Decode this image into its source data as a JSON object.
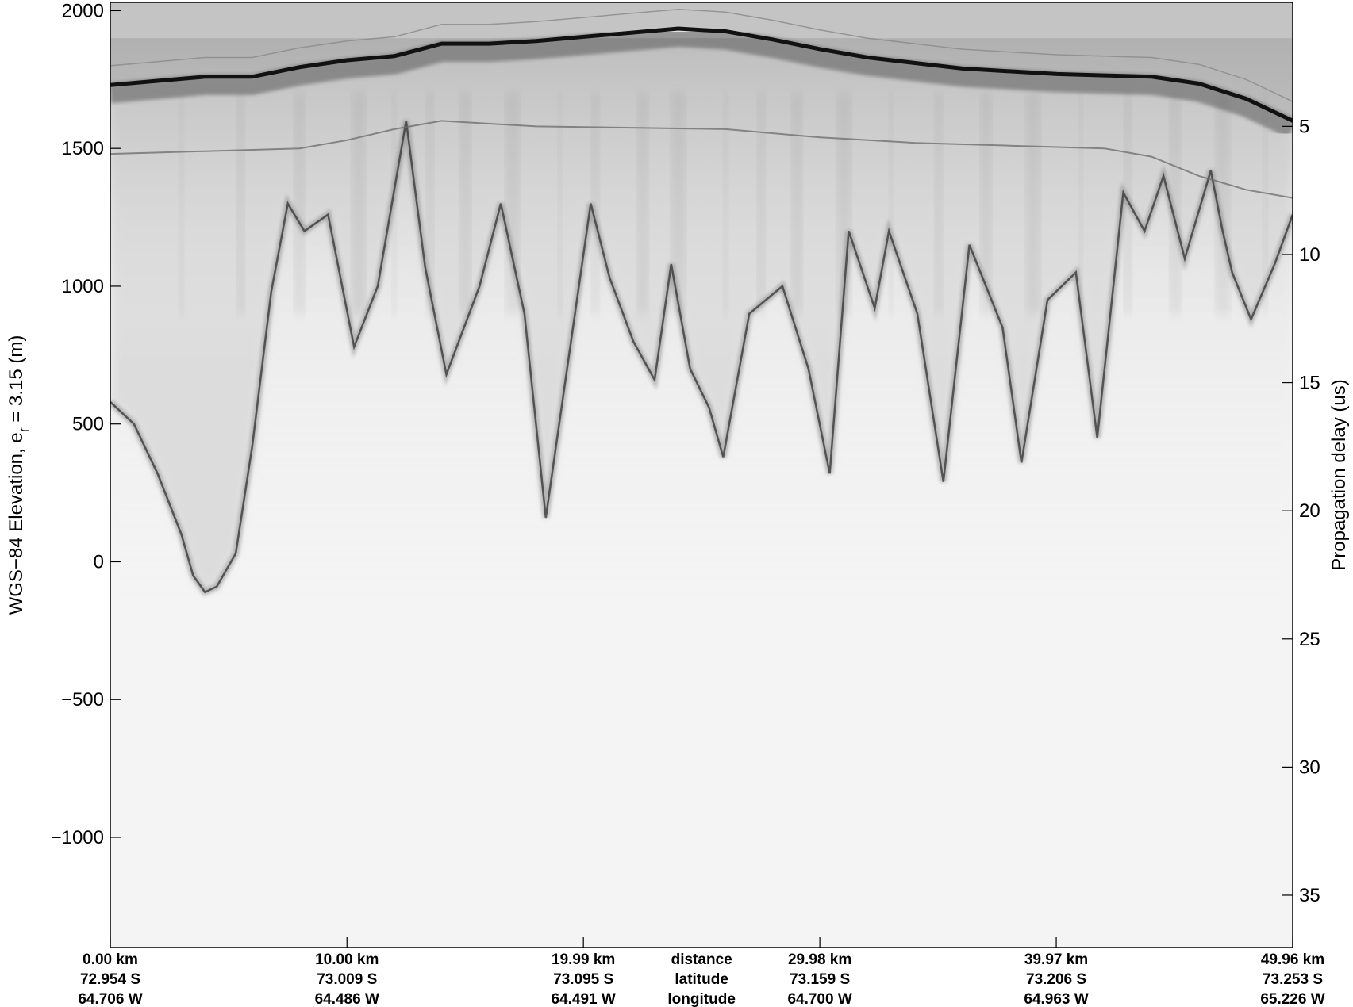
{
  "chart_data": {
    "type": "heatmap",
    "title": "",
    "colormap": "grayscale (dark = strong return)",
    "grid": false,
    "ylabel_left": "WGS−84 Elevation, e",
    "ylabel_left_subscript": "r",
    "ylabel_left_suffix": " = 3.15 (m)",
    "ylabel_right": "Propagation delay (us)",
    "ylim_left": [
      -1400,
      2030
    ],
    "yticks_left": [
      2000,
      1500,
      1000,
      500,
      0,
      -500,
      -1000
    ],
    "ytick_labels_left": [
      "2000",
      "1500",
      "1000",
      "500",
      "0",
      "−500",
      "−1000"
    ],
    "yticks_right": [
      5,
      10,
      15,
      20,
      25,
      30,
      35
    ],
    "ytick_labels_right": [
      "5",
      "10",
      "15",
      "20",
      "25",
      "30",
      "35"
    ],
    "xlim_km": [
      0,
      49.96
    ],
    "xticks_km": [
      0.0,
      10.0,
      19.99,
      29.98,
      39.97,
      49.96
    ],
    "xtick_rows": {
      "distance": [
        "0.00 km",
        "10.00 km",
        "19.99 km",
        "29.98 km",
        "39.97 km",
        "49.96 km"
      ],
      "latitude": [
        "72.954 S",
        "73.009 S",
        "73.095 S",
        "73.159 S",
        "73.206 S",
        "73.253 S"
      ],
      "longitude": [
        "64.706 W",
        "64.486 W",
        "64.491 W",
        "64.700 W",
        "64.963 W",
        "65.226 W"
      ]
    },
    "row_labels": [
      "distance",
      "latitude",
      "longitude"
    ],
    "surface_elevation": {
      "x_km": [
        0,
        2,
        4,
        6,
        8,
        10,
        12,
        14,
        16,
        18,
        20,
        22,
        24,
        26,
        28,
        30,
        32,
        34,
        36,
        38,
        40,
        42,
        44,
        46,
        48,
        49.96
      ],
      "elevation_m": [
        1730,
        1745,
        1760,
        1760,
        1795,
        1820,
        1835,
        1880,
        1880,
        1890,
        1905,
        1920,
        1935,
        1925,
        1895,
        1860,
        1830,
        1810,
        1790,
        1780,
        1770,
        1765,
        1760,
        1735,
        1680,
        1600
      ]
    },
    "internal_layer": {
      "x_km": [
        0,
        4,
        8,
        10,
        12,
        14,
        18,
        22,
        26,
        30,
        34,
        38,
        42,
        44,
        46,
        48,
        49.96
      ],
      "elevation_m": [
        1480,
        1490,
        1500,
        1530,
        1570,
        1600,
        1580,
        1575,
        1570,
        1540,
        1520,
        1510,
        1500,
        1470,
        1400,
        1350,
        1320
      ]
    },
    "bed_elevation": {
      "x_km": [
        0,
        1,
        2,
        3,
        3.5,
        4,
        4.5,
        5.3,
        6,
        6.8,
        7.5,
        8.2,
        9.2,
        10.3,
        11.3,
        12.5,
        13.3,
        14.2,
        15.6,
        16.5,
        17.5,
        18.4,
        19.3,
        20.3,
        21.1,
        22.1,
        23,
        23.7,
        24.5,
        25.3,
        25.9,
        27,
        28.4,
        29.5,
        30.4,
        31.2,
        32.3,
        32.9,
        34.1,
        35.2,
        36.3,
        37.7,
        38.5,
        39.6,
        40.8,
        41.7,
        42.8,
        43.7,
        44.5,
        45.4,
        46.5,
        47,
        47.4,
        48.2,
        49.2,
        49.96
      ],
      "elevation_m": [
        580,
        500,
        320,
        100,
        -50,
        -110,
        -90,
        30,
        420,
        980,
        1300,
        1200,
        1260,
        780,
        1000,
        1600,
        1070,
        680,
        1000,
        1300,
        900,
        160,
        700,
        1300,
        1030,
        800,
        660,
        1080,
        700,
        560,
        380,
        900,
        1000,
        700,
        320,
        1200,
        920,
        1200,
        900,
        290,
        1150,
        850,
        360,
        950,
        1050,
        450,
        1340,
        1200,
        1400,
        1100,
        1420,
        1200,
        1050,
        880,
        1080,
        1260
      ]
    }
  }
}
